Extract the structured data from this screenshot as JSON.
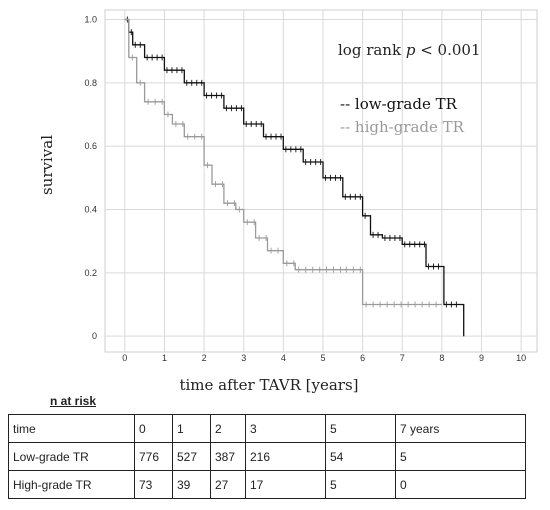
{
  "chart_data": {
    "type": "line",
    "ylabel": "survival",
    "xlabel": "time after TAVR [years]",
    "annotation": "log rank p < 0.001",
    "annotation_parts": [
      "log rank ",
      "p",
      " < 0.001"
    ],
    "legend_position": "top-right",
    "xlim": [
      -0.5,
      10.4
    ],
    "ylim": [
      -0.05,
      1.03
    ],
    "x_ticks": [
      "0",
      "1",
      "2",
      "3",
      "4",
      "5",
      "6",
      "7",
      "8",
      "9",
      "10"
    ],
    "y_ticks": [
      "0",
      "0.2",
      "0.4",
      "0.6",
      "0.8",
      "1.0"
    ],
    "grid": true,
    "series": [
      {
        "name": "low-grade TR",
        "legend_label": "-- low-grade TR",
        "color": "#111111",
        "step": true,
        "censor_marks": true,
        "points": [
          [
            0,
            1.0
          ],
          [
            0.1,
            0.96
          ],
          [
            0.2,
            0.92
          ],
          [
            0.5,
            0.88
          ],
          [
            1,
            0.84
          ],
          [
            1.5,
            0.8
          ],
          [
            2,
            0.76
          ],
          [
            2.5,
            0.72
          ],
          [
            3,
            0.67
          ],
          [
            3.5,
            0.63
          ],
          [
            4,
            0.59
          ],
          [
            4.5,
            0.55
          ],
          [
            5,
            0.5
          ],
          [
            5.5,
            0.44
          ],
          [
            6,
            0.38
          ],
          [
            6.2,
            0.32
          ],
          [
            6.5,
            0.31
          ],
          [
            7,
            0.29
          ],
          [
            7.5,
            0.29
          ],
          [
            7.6,
            0.22
          ],
          [
            8,
            0.22
          ],
          [
            8.05,
            0.1
          ],
          [
            8.5,
            0.1
          ],
          [
            8.55,
            0.0
          ]
        ]
      },
      {
        "name": "high-grade TR",
        "legend_label": "-- high-grade TR",
        "color": "#9a9a9a",
        "step": true,
        "censor_marks": true,
        "points": [
          [
            0,
            1.0
          ],
          [
            0.1,
            0.88
          ],
          [
            0.3,
            0.8
          ],
          [
            0.5,
            0.74
          ],
          [
            1,
            0.7
          ],
          [
            1.2,
            0.67
          ],
          [
            1.5,
            0.63
          ],
          [
            2,
            0.54
          ],
          [
            2.2,
            0.48
          ],
          [
            2.5,
            0.42
          ],
          [
            2.8,
            0.4
          ],
          [
            3,
            0.36
          ],
          [
            3.3,
            0.31
          ],
          [
            3.6,
            0.27
          ],
          [
            4,
            0.23
          ],
          [
            4.3,
            0.21
          ],
          [
            5,
            0.21
          ],
          [
            5.5,
            0.21
          ],
          [
            6,
            0.1
          ],
          [
            8,
            0.1
          ]
        ]
      }
    ]
  },
  "risk_table": {
    "title": "n at risk",
    "header": [
      "time",
      "0",
      "1",
      "2",
      "3",
      "5",
      "7 years"
    ],
    "rows": [
      [
        "Low-grade TR",
        "776",
        "527",
        "387",
        "216",
        "54",
        "5"
      ],
      [
        "High-grade TR",
        "73",
        "39",
        "27",
        "17",
        "5",
        "0"
      ]
    ]
  }
}
